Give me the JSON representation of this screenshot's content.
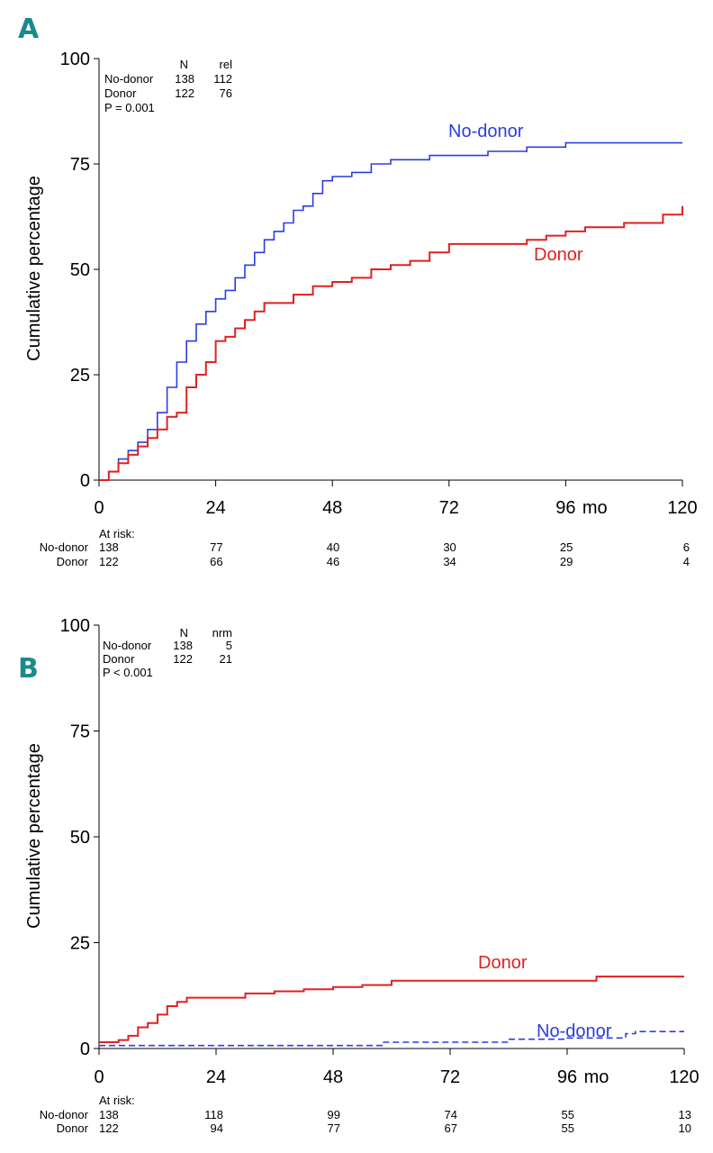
{
  "panels": [
    {
      "label": "A",
      "ylabel": "Cumulative percentage",
      "xunit": "mo",
      "xticks": [
        "0",
        "24",
        "48",
        "72",
        "96",
        "120"
      ],
      "yticks": [
        "0",
        "25",
        "50",
        "75",
        "100"
      ],
      "stats": {
        "header": [
          "N",
          "rel"
        ],
        "rows": [
          {
            "name": "No-donor",
            "n": "138",
            "v": "112"
          },
          {
            "name": "Donor",
            "n": "122",
            "v": "76"
          }
        ],
        "p": "P = 0.001"
      },
      "at_risk": {
        "title": "At risk:",
        "rows": [
          {
            "name": "No-donor",
            "values": [
              "138",
              "77",
              "40",
              "30",
              "25",
              "6"
            ]
          },
          {
            "name": "Donor",
            "values": [
              "122",
              "66",
              "46",
              "34",
              "29",
              "4"
            ]
          }
        ]
      },
      "series_labels": {
        "nodonor": "No-donor",
        "donor": "Donor"
      }
    },
    {
      "label": "B",
      "ylabel": "Cumulative percentage",
      "xunit": "mo",
      "xticks": [
        "0",
        "24",
        "48",
        "72",
        "96",
        "120"
      ],
      "yticks": [
        "0",
        "25",
        "50",
        "75",
        "100"
      ],
      "stats": {
        "header": [
          "N",
          "nrm"
        ],
        "rows": [
          {
            "name": "No-donor",
            "n": "138",
            "v": "5"
          },
          {
            "name": "Donor",
            "n": "122",
            "v": "21"
          }
        ],
        "p": "P < 0.001"
      },
      "at_risk": {
        "title": "At risk:",
        "rows": [
          {
            "name": "No-donor",
            "values": [
              "138",
              "118",
              "99",
              "74",
              "55",
              "13"
            ]
          },
          {
            "name": "Donor",
            "values": [
              "122",
              "94",
              "77",
              "67",
              "55",
              "10"
            ]
          }
        ]
      },
      "series_labels": {
        "nodonor": "No-donor",
        "donor": "Donor"
      }
    }
  ],
  "colors": {
    "donor": "#e02020",
    "nodonor": "#2b3de0",
    "accent": "#1a8a8a"
  },
  "chart_data": [
    {
      "type": "line",
      "title": "A",
      "xlabel": "mo",
      "ylabel": "Cumulative percentage",
      "xlim": [
        0,
        120
      ],
      "ylim": [
        0,
        100
      ],
      "series": [
        {
          "name": "No-donor",
          "x": [
            0,
            2,
            4,
            6,
            8,
            10,
            12,
            14,
            16,
            18,
            20,
            22,
            24,
            26,
            28,
            30,
            32,
            34,
            36,
            38,
            40,
            42,
            44,
            46,
            48,
            52,
            56,
            60,
            64,
            68,
            72,
            80,
            88,
            96,
            104,
            112,
            120
          ],
          "y": [
            0,
            2,
            5,
            7,
            9,
            12,
            16,
            22,
            28,
            33,
            37,
            40,
            43,
            45,
            48,
            51,
            54,
            57,
            59,
            61,
            64,
            65,
            68,
            71,
            72,
            73,
            75,
            76,
            76,
            77,
            77,
            78,
            79,
            80,
            80,
            80,
            80
          ]
        },
        {
          "name": "Donor",
          "x": [
            0,
            2,
            4,
            6,
            8,
            10,
            12,
            14,
            16,
            18,
            20,
            22,
            24,
            26,
            28,
            30,
            32,
            34,
            36,
            40,
            44,
            48,
            52,
            56,
            60,
            64,
            68,
            72,
            80,
            88,
            92,
            96,
            100,
            104,
            108,
            112,
            116,
            118,
            120
          ],
          "y": [
            0,
            2,
            4,
            6,
            8,
            10,
            12,
            15,
            16,
            22,
            25,
            28,
            33,
            34,
            36,
            38,
            40,
            42,
            42,
            44,
            46,
            47,
            48,
            50,
            51,
            52,
            54,
            56,
            56,
            57,
            58,
            59,
            60,
            60,
            61,
            61,
            63,
            63,
            65
          ]
        }
      ],
      "annotations": [
        "N rel",
        "No-donor 138 112",
        "Donor 122 76",
        "P = 0.001"
      ]
    },
    {
      "type": "line",
      "title": "B",
      "xlabel": "mo",
      "ylabel": "Cumulative percentage",
      "xlim": [
        0,
        120
      ],
      "ylim": [
        0,
        100
      ],
      "series": [
        {
          "name": "Donor",
          "x": [
            0,
            2,
            4,
            6,
            8,
            10,
            12,
            14,
            16,
            18,
            24,
            30,
            36,
            42,
            48,
            54,
            60,
            72,
            84,
            96,
            102,
            110,
            120
          ],
          "y": [
            1.5,
            1.5,
            2,
            3,
            5,
            6,
            8,
            10,
            11,
            12,
            12,
            13,
            13.5,
            14,
            14.5,
            15,
            16,
            16,
            16,
            16,
            17,
            17,
            17
          ]
        },
        {
          "name": "No-donor",
          "x": [
            0,
            24,
            48,
            58,
            60,
            72,
            84,
            96,
            108,
            110,
            120
          ],
          "y": [
            0.7,
            0.7,
            0.7,
            1.5,
            1.5,
            1.5,
            2.2,
            2.5,
            3.5,
            4,
            4
          ]
        }
      ],
      "annotations": [
        "N nrm",
        "No-donor 138 5",
        "Donor 122 21",
        "P < 0.001"
      ]
    }
  ]
}
